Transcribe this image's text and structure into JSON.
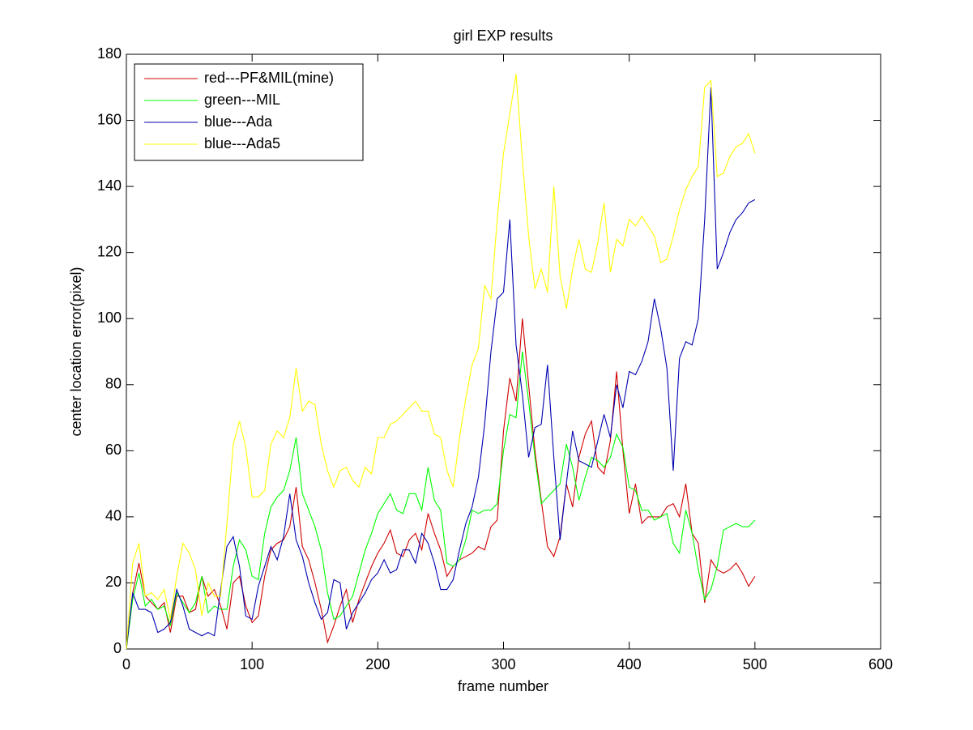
{
  "chart_data": {
    "type": "line",
    "title": "girl EXP results",
    "xlabel": "frame number",
    "ylabel": "center location error(pixel)",
    "xlim": [
      0,
      600
    ],
    "ylim": [
      0,
      180
    ],
    "xticks": [
      0,
      100,
      200,
      300,
      400,
      500,
      600
    ],
    "yticks": [
      0,
      20,
      40,
      60,
      80,
      100,
      120,
      140,
      160,
      180
    ],
    "grid": false,
    "legend": "upper left",
    "x": [
      0,
      5,
      10,
      15,
      20,
      25,
      30,
      35,
      40,
      45,
      50,
      55,
      60,
      65,
      70,
      75,
      80,
      85,
      90,
      95,
      100,
      105,
      110,
      115,
      120,
      125,
      130,
      135,
      140,
      145,
      150,
      155,
      160,
      165,
      170,
      175,
      180,
      185,
      190,
      195,
      200,
      205,
      210,
      215,
      220,
      225,
      230,
      235,
      240,
      245,
      250,
      255,
      260,
      265,
      270,
      275,
      280,
      285,
      290,
      295,
      300,
      305,
      310,
      315,
      320,
      325,
      330,
      335,
      340,
      345,
      350,
      355,
      360,
      365,
      370,
      375,
      380,
      385,
      390,
      395,
      400,
      405,
      410,
      415,
      420,
      425,
      430,
      435,
      440,
      445,
      450,
      455,
      460,
      465,
      470,
      475,
      480,
      485,
      490,
      495,
      500
    ],
    "series": [
      {
        "name": "red---PF&MIL(mine)",
        "color": "#d00000",
        "values": [
          0,
          17,
          26,
          16,
          14,
          12,
          14,
          5,
          16,
          16,
          11,
          12,
          22,
          16,
          18,
          13,
          6,
          20,
          22,
          13,
          8,
          10,
          22,
          30,
          32,
          33,
          37,
          49,
          31,
          27,
          20,
          12,
          2,
          7,
          13,
          18,
          8,
          15,
          20,
          25,
          29,
          32,
          36,
          29,
          28,
          33,
          35,
          30,
          41,
          35,
          30,
          22,
          25,
          27,
          28,
          29,
          31,
          30,
          37,
          39,
          66,
          82,
          75,
          100,
          80,
          60,
          45,
          31,
          28,
          34,
          50,
          43,
          58,
          65,
          69,
          55,
          53,
          63,
          84,
          60,
          41,
          50,
          38,
          40,
          40,
          40,
          43,
          44,
          40,
          50,
          35,
          32,
          14,
          27,
          24,
          23,
          24,
          26,
          23,
          19,
          22
        ]
      },
      {
        "name": "green---MIL",
        "color": "#00ff00",
        "values": [
          0,
          15,
          23,
          13,
          15,
          12,
          13,
          7,
          17,
          14,
          11,
          14,
          22,
          11,
          13,
          12,
          12,
          25,
          33,
          30,
          22,
          21,
          35,
          43,
          46,
          48,
          54,
          64,
          47,
          42,
          37,
          30,
          17,
          9,
          10,
          13,
          16,
          23,
          30,
          35,
          41,
          44,
          47,
          42,
          41,
          47,
          47,
          42,
          55,
          45,
          42,
          26,
          25,
          27,
          33,
          42,
          41,
          42,
          42,
          44,
          60,
          71,
          70,
          90,
          75,
          58,
          44,
          46,
          48,
          50,
          62,
          55,
          45,
          52,
          58,
          57,
          55,
          58,
          65,
          61,
          49,
          48,
          42,
          42,
          39,
          40,
          41,
          32,
          29,
          42,
          35,
          24,
          15,
          18,
          25,
          36,
          37,
          38,
          37,
          37,
          39
        ]
      },
      {
        "name": "blue---Ada",
        "color": "#0000b0",
        "values": [
          0,
          17,
          12,
          12,
          11,
          5,
          6,
          8,
          18,
          13,
          6,
          5,
          4,
          5,
          4,
          18,
          31,
          34,
          25,
          10,
          9,
          19,
          25,
          31,
          27,
          34,
          47,
          33,
          28,
          20,
          14,
          9,
          11,
          21,
          20,
          6,
          11,
          14,
          17,
          21,
          23,
          27,
          23,
          24,
          30,
          30,
          26,
          35,
          32,
          26,
          18,
          18,
          21,
          30,
          38,
          43,
          52,
          68,
          90,
          106,
          108,
          130,
          92,
          77,
          58,
          67,
          68,
          86,
          58,
          33,
          50,
          66,
          57,
          56,
          55,
          63,
          71,
          64,
          80,
          73,
          84,
          83,
          87,
          93,
          106,
          97,
          85,
          54,
          88,
          93,
          92,
          100,
          130,
          170,
          115,
          120,
          126,
          130,
          132,
          135,
          136
        ]
      },
      {
        "name": "blue---Ada5",
        "color": "#ffff00",
        "values": [
          0,
          26,
          32,
          16,
          17,
          15,
          18,
          9,
          22,
          32,
          29,
          24,
          10,
          20,
          16,
          16,
          38,
          62,
          69,
          61,
          46,
          46,
          48,
          62,
          66,
          64,
          70,
          85,
          72,
          75,
          74,
          62,
          54,
          49,
          54,
          55,
          51,
          49,
          55,
          53,
          64,
          64,
          68,
          69,
          71,
          73,
          75,
          72,
          72,
          65,
          64,
          54,
          49,
          64,
          76,
          86,
          91,
          110,
          106,
          130,
          150,
          162,
          174,
          148,
          125,
          109,
          115,
          108,
          140,
          113,
          103,
          115,
          124,
          115,
          114,
          123,
          135,
          114,
          124,
          122,
          130,
          128,
          131,
          128,
          125,
          117,
          118,
          125,
          133,
          139,
          143,
          146,
          170,
          172,
          143,
          144,
          149,
          152,
          153,
          156,
          150
        ]
      }
    ]
  }
}
